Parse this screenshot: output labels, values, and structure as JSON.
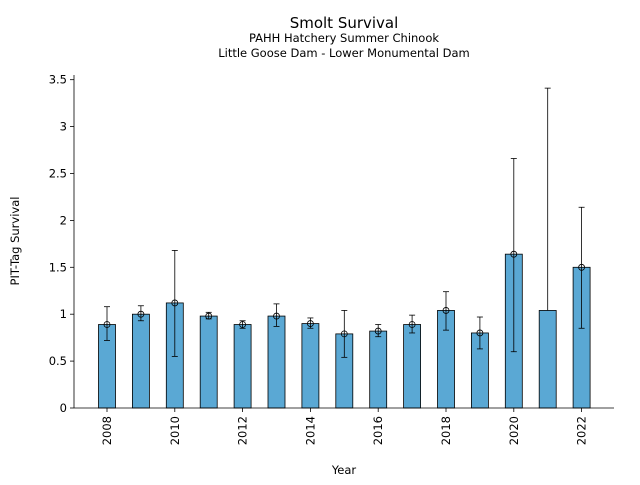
{
  "chart_data": {
    "type": "bar",
    "title": "Smolt Survival",
    "subtitle_lines": [
      "PAHH Hatchery Summer Chinook",
      "Little Goose Dam - Lower Monumental Dam"
    ],
    "xlabel": "Year",
    "ylabel": "PIT-Tag Survival",
    "ylim": [
      0,
      3.55
    ],
    "grid": false,
    "bar_color": "#5aa8d4",
    "y_ticks": [
      0,
      0.5,
      1,
      1.5,
      2,
      2.5,
      3,
      3.5
    ],
    "y_tick_labels": [
      "0",
      "0.5",
      "1",
      "1.5",
      "2",
      "2.5",
      "3",
      "3.5"
    ],
    "x_tick_labels": [
      "2008",
      "2010",
      "2012",
      "2014",
      "2016",
      "2018",
      "2020",
      "2022"
    ],
    "categories": [
      "2008",
      "2009",
      "2010",
      "2011",
      "2012",
      "2013",
      "2014",
      "2015",
      "2016",
      "2017",
      "2018",
      "2019",
      "2020",
      "2021",
      "2022"
    ],
    "values": [
      0.89,
      1.0,
      1.12,
      0.98,
      0.89,
      0.98,
      0.9,
      0.79,
      0.82,
      0.89,
      1.04,
      0.8,
      1.64,
      1.04,
      1.5
    ],
    "markers": [
      0.89,
      1.0,
      1.12,
      0.98,
      0.89,
      0.98,
      0.9,
      0.79,
      0.82,
      0.89,
      1.04,
      0.8,
      1.64,
      null,
      1.5
    ],
    "err_low": [
      0.72,
      0.93,
      0.55,
      0.95,
      0.85,
      0.87,
      0.85,
      0.54,
      0.76,
      0.8,
      0.83,
      0.63,
      0.6,
      null,
      0.85
    ],
    "err_high": [
      1.08,
      1.09,
      1.68,
      1.02,
      0.93,
      1.11,
      0.96,
      1.04,
      0.89,
      0.99,
      1.24,
      0.97,
      2.66,
      3.41,
      2.14
    ]
  }
}
